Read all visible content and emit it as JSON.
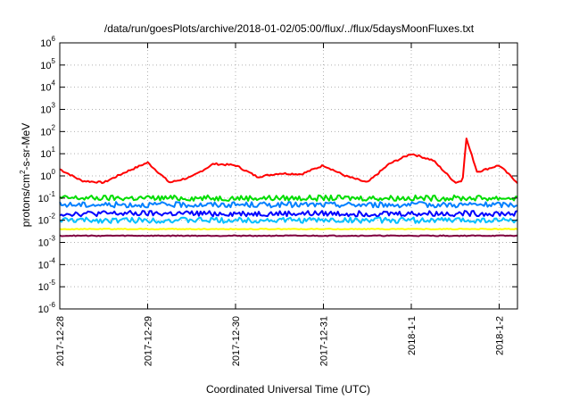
{
  "chart_data": {
    "type": "line",
    "title": "/data/run/goesPlots/archive/2018-01-02/05:00/flux/../flux/5daysMoonFluxes.txt",
    "xlabel": "Coordinated Universal Time (UTC)",
    "ylabel": {
      "prefix": "protons/cm",
      "sup": "2",
      "suffix": "-s-sr-MeV"
    },
    "yscale": "log",
    "ylim": [
      -6,
      6
    ],
    "y_ticks": [
      {
        "base": "10",
        "exp": "6",
        "value": 6
      },
      {
        "base": "10",
        "exp": "5",
        "value": 5
      },
      {
        "base": "10",
        "exp": "4",
        "value": 4
      },
      {
        "base": "10",
        "exp": "3",
        "value": 3
      },
      {
        "base": "10",
        "exp": "2",
        "value": 2
      },
      {
        "base": "10",
        "exp": "1",
        "value": 1
      },
      {
        "base": "10",
        "exp": "0",
        "value": 0
      },
      {
        "base": "10",
        "exp": "-1",
        "value": -1
      },
      {
        "base": "10",
        "exp": "-2",
        "value": -2
      },
      {
        "base": "10",
        "exp": "-3",
        "value": -3
      },
      {
        "base": "10",
        "exp": "-4",
        "value": -4
      },
      {
        "base": "10",
        "exp": "-5",
        "value": -5
      },
      {
        "base": "10",
        "exp": "-6",
        "value": -6
      }
    ],
    "xlim": [
      "2017-12-28 00:00",
      "2018-01-02 05:00"
    ],
    "x_ticks": [
      {
        "label": "2017-12-28",
        "date": "2017-12-28 00:00"
      },
      {
        "label": "2017-12-29",
        "date": "2017-12-29 00:00"
      },
      {
        "label": "2017-12-30",
        "date": "2017-12-30 00:00"
      },
      {
        "label": "2017-12-31",
        "date": "2017-12-31 00:00"
      },
      {
        "label": "2018-1-1",
        "date": "2018-01-01 00:00"
      },
      {
        "label": "2018-1-2",
        "date": "2018-01-02 00:00"
      }
    ],
    "grid": true,
    "series": [
      {
        "color": "#ff0000",
        "x": [
          "2017-12-28 00:00",
          "2017-12-28 06:00",
          "2017-12-28 12:00",
          "2017-12-28 18:00",
          "2017-12-29 00:00",
          "2017-12-29 06:00",
          "2017-12-29 12:00",
          "2017-12-29 18:00",
          "2017-12-30 00:00",
          "2017-12-30 06:00",
          "2017-12-30 12:00",
          "2017-12-30 18:00",
          "2017-12-31 00:00",
          "2017-12-31 06:00",
          "2017-12-31 12:00",
          "2017-12-31 18:00",
          "2018-01-01 00:00",
          "2018-01-01 06:00",
          "2018-01-01 12:00",
          "2018-01-01 14:00",
          "2018-01-01 15:00",
          "2018-01-01 18:00",
          "2018-01-02 00:00",
          "2018-01-02 05:00"
        ],
        "y": [
          2.0,
          0.6,
          0.5,
          1.5,
          4.0,
          0.5,
          0.9,
          3.5,
          3.0,
          0.9,
          1.3,
          1.2,
          3.0,
          1.0,
          0.5,
          3.5,
          10,
          5.0,
          0.5,
          0.6,
          50,
          1.5,
          3.0,
          0.5
        ]
      },
      {
        "color": "#00dd00",
        "x": [
          "2017-12-28 00:00",
          "2018-01-02 05:00"
        ],
        "y": [
          0.1,
          0.1
        ]
      },
      {
        "color": "#0080ff",
        "x": [
          "2017-12-28 00:00",
          "2018-01-02 05:00"
        ],
        "y": [
          0.05,
          0.05
        ]
      },
      {
        "color": "#0000ff",
        "x": [
          "2017-12-28 00:00",
          "2018-01-02 05:00"
        ],
        "y": [
          0.02,
          0.02
        ]
      },
      {
        "color": "#00bfff",
        "x": [
          "2017-12-28 00:00",
          "2018-01-02 05:00"
        ],
        "y": [
          0.01,
          0.01
        ]
      },
      {
        "color": "#ffff00",
        "x": [
          "2017-12-28 00:00",
          "2018-01-02 05:00"
        ],
        "y": [
          0.004,
          0.004
        ]
      },
      {
        "color": "#800040",
        "x": [
          "2017-12-28 00:00",
          "2018-01-02 05:00"
        ],
        "y": [
          0.002,
          0.002
        ]
      }
    ]
  }
}
